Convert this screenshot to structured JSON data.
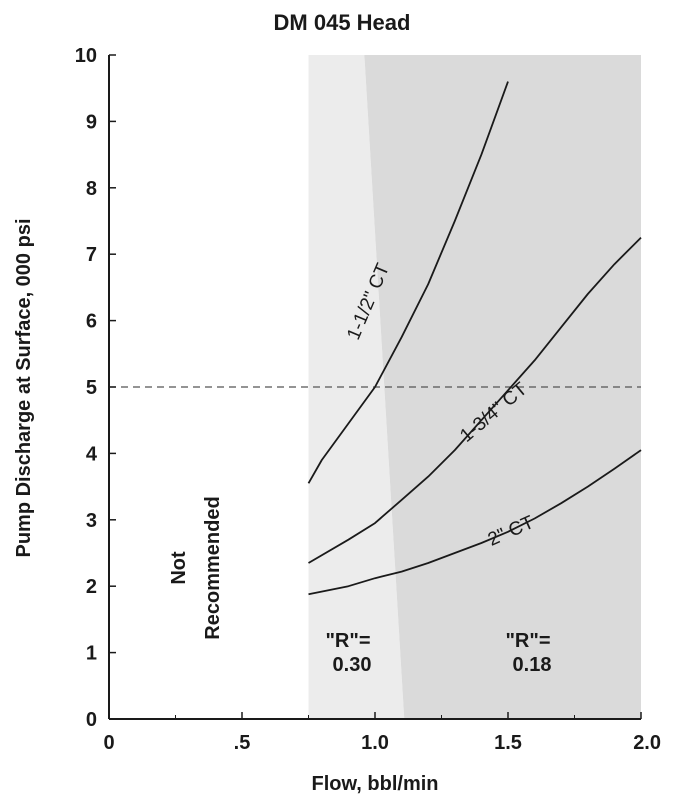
{
  "chart_data": {
    "type": "line",
    "title": "DM 045 Head",
    "xlabel": "Flow, bbl/min",
    "ylabel": "Pump Discharge at Surface, 000 psi",
    "xlim": [
      0,
      2.0
    ],
    "ylim": [
      0,
      10
    ],
    "x_ticks": [
      {
        "value": 0,
        "label": "0"
      },
      {
        "value": 0.5,
        "label": ".5"
      },
      {
        "value": 1.0,
        "label": "1.0"
      },
      {
        "value": 1.5,
        "label": "1.5"
      },
      {
        "value": 2.0,
        "label": "2.0"
      }
    ],
    "y_ticks": [
      {
        "value": 0,
        "label": "0"
      },
      {
        "value": 1,
        "label": "1"
      },
      {
        "value": 2,
        "label": "2"
      },
      {
        "value": 3,
        "label": "3"
      },
      {
        "value": 4,
        "label": "4"
      },
      {
        "value": 5,
        "label": "5"
      },
      {
        "value": 6,
        "label": "6"
      },
      {
        "value": 7,
        "label": "7"
      },
      {
        "value": 8,
        "label": "8"
      },
      {
        "value": 9,
        "label": "9"
      },
      {
        "value": 10,
        "label": "10"
      }
    ],
    "reference_line": {
      "y": 5,
      "style": "dashed"
    },
    "regions": [
      {
        "label_lines": [
          "Not",
          "Recommended"
        ],
        "x_range": [
          0,
          0.75
        ],
        "color": "#ffffff"
      },
      {
        "label_lines": [
          "\"R\"=",
          "0.30"
        ],
        "x_top": [
          0.75,
          0.96
        ],
        "x_bottom": [
          0.75,
          1.11
        ],
        "color": "#ececec"
      },
      {
        "label_lines": [
          "\"R\"=",
          "0.18"
        ],
        "x_top": [
          0.96,
          2.0
        ],
        "x_bottom": [
          1.11,
          2.0
        ],
        "color": "#dadada"
      }
    ],
    "series": [
      {
        "name": "1-1/2\" CT",
        "x": [
          0.75,
          0.8,
          0.9,
          1.0,
          1.1,
          1.2,
          1.3,
          1.4,
          1.5
        ],
        "y": [
          3.55,
          3.9,
          4.45,
          5.0,
          5.75,
          6.55,
          7.5,
          8.5,
          9.6
        ]
      },
      {
        "name": "1-3/4\" CT",
        "x": [
          0.75,
          0.9,
          1.0,
          1.1,
          1.2,
          1.3,
          1.4,
          1.5,
          1.6,
          1.7,
          1.8,
          1.9,
          2.0
        ],
        "y": [
          2.35,
          2.7,
          2.95,
          3.3,
          3.65,
          4.05,
          4.5,
          4.95,
          5.4,
          5.9,
          6.4,
          6.85,
          7.25
        ]
      },
      {
        "name": "2\" CT",
        "x": [
          0.75,
          0.9,
          1.0,
          1.1,
          1.2,
          1.3,
          1.4,
          1.5,
          1.6,
          1.7,
          1.8,
          1.9,
          2.0
        ],
        "y": [
          1.88,
          2.0,
          2.12,
          2.22,
          2.35,
          2.5,
          2.65,
          2.82,
          3.02,
          3.25,
          3.5,
          3.77,
          4.05
        ]
      }
    ]
  }
}
